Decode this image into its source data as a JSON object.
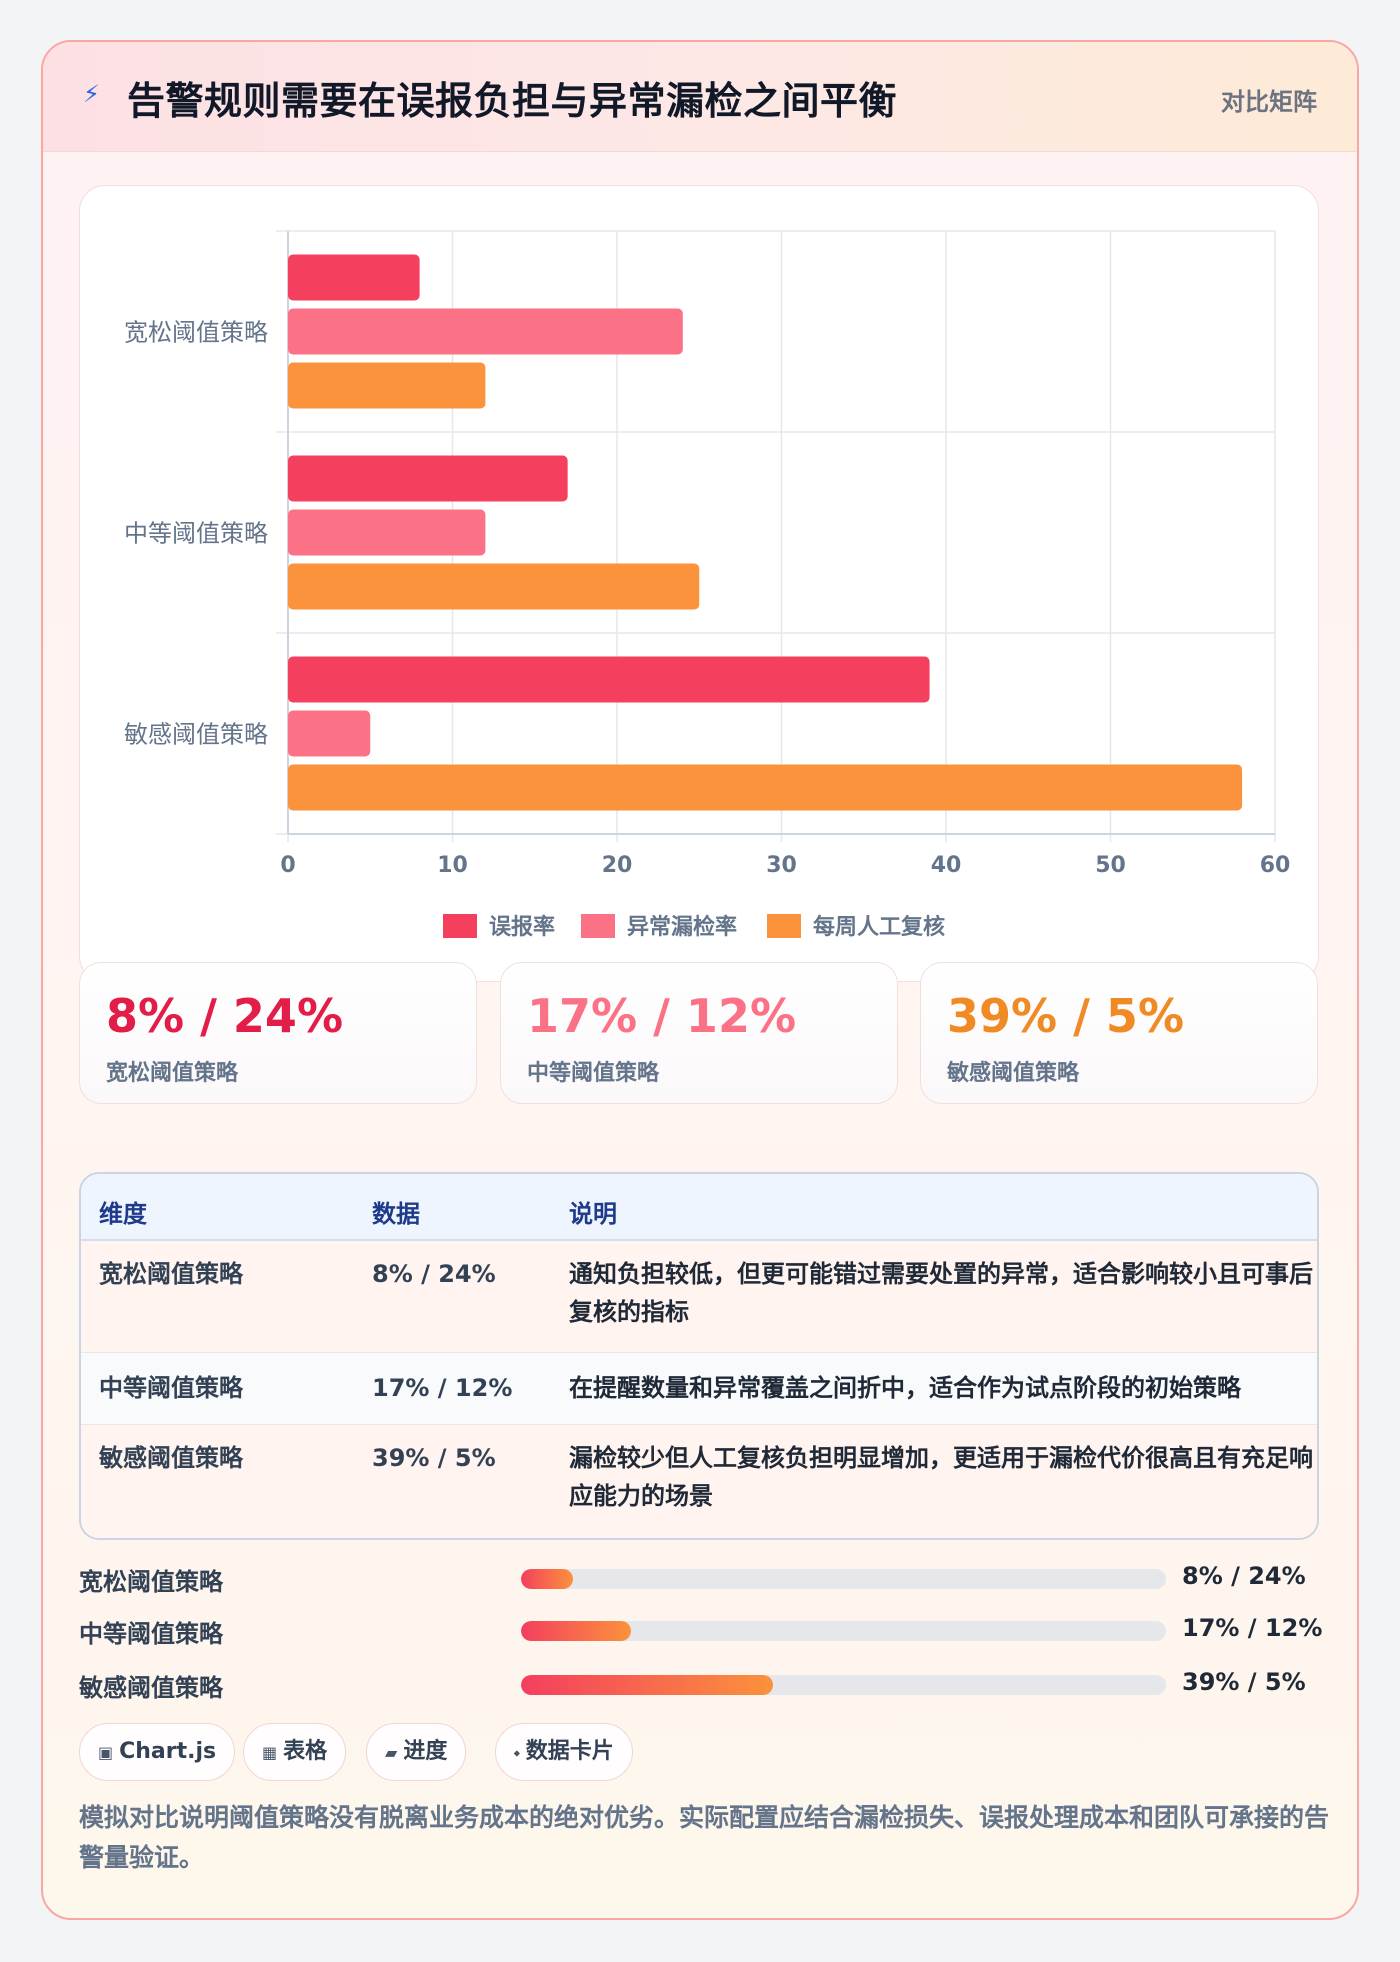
{
  "header": {
    "title": "告警规则需要在误报负担与异常漏检之间平衡",
    "tag": "对比矩阵"
  },
  "chart_data": {
    "type": "bar",
    "orientation": "horizontal",
    "categories": [
      "宽松阈值策略",
      "中等阈值策略",
      "敏感阈值策略"
    ],
    "series": [
      {
        "name": "误报率",
        "color": "#f43f5e",
        "values": [
          8,
          17,
          39
        ]
      },
      {
        "name": "异常漏检率",
        "color": "#fb7185",
        "values": [
          24,
          12,
          5
        ]
      },
      {
        "name": "每周人工复核",
        "color": "#fb923c",
        "values": [
          12,
          25,
          58
        ]
      }
    ],
    "xlim": [
      0,
      60
    ],
    "xticks": [
      "0",
      "10",
      "20",
      "30",
      "40",
      "50",
      "60"
    ],
    "grid": true,
    "legend": "bottom-center"
  },
  "stats": [
    {
      "value": "8% / 24%",
      "label": "宽松阈值策略",
      "color": "#e11d48"
    },
    {
      "value": "17% / 12%",
      "label": "中等阈值策略",
      "color": "#fb7185"
    },
    {
      "value": "39% / 5%",
      "label": "敏感阈值策略",
      "color": "#f08a24"
    }
  ],
  "table": {
    "headers": [
      "维度",
      "数据",
      "说明"
    ],
    "rows": [
      {
        "name": "宽松阈值策略",
        "data": "8% / 24%",
        "desc": "通知负担较低，但更可能错过需要处置的异常，适合影响较小且可事后复核的指标"
      },
      {
        "name": "中等阈值策略",
        "data": "17% / 12%",
        "desc": "在提醒数量和异常覆盖之间折中，适合作为试点阶段的初始策略"
      },
      {
        "name": "敏感阈值策略",
        "data": "39% / 5%",
        "desc": "漏检较少但人工复核负担明显增加，更适用于漏检代价很高且有充足响应能力的场景"
      }
    ]
  },
  "progress": [
    {
      "label": "宽松阈值策略",
      "value": "8% / 24%",
      "fill": 0.08
    },
    {
      "label": "中等阈值策略",
      "value": "17% / 12%",
      "fill": 0.17
    },
    {
      "label": "敏感阈值策略",
      "value": "39% / 5%",
      "fill": 0.39
    }
  ],
  "pills": [
    {
      "icon": "▣",
      "label": "Chart.js"
    },
    {
      "icon": "▦",
      "label": "表格"
    },
    {
      "icon": "▰",
      "label": "进度"
    },
    {
      "icon": "⬩",
      "label": "数据卡片"
    }
  ],
  "footnote": "模拟对比说明阈值策略没有脱离业务成本的绝对优劣。实际配置应结合漏检损失、误报处理成本和团队可承接的告警量验证。"
}
